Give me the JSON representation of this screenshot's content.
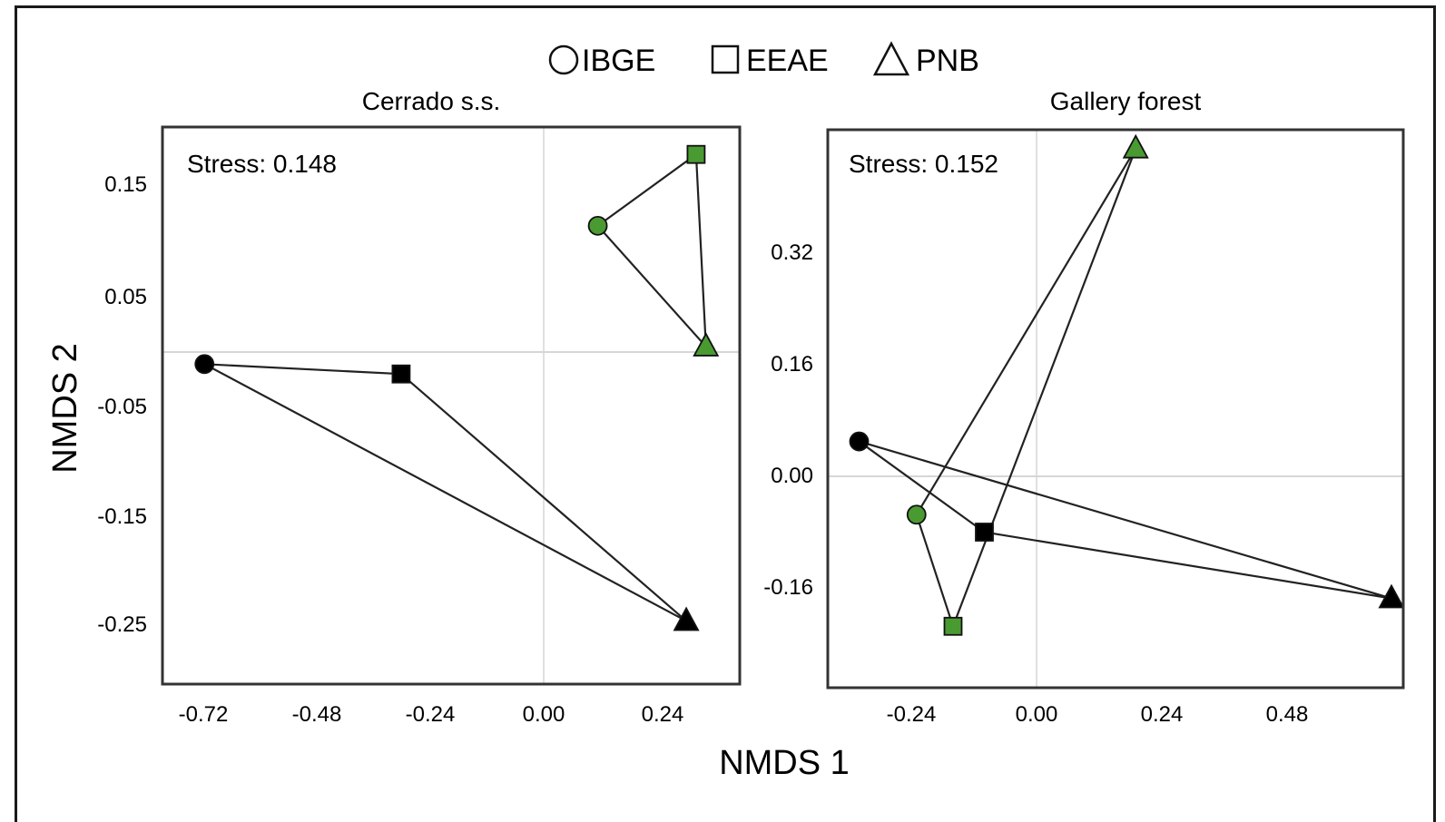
{
  "legend": {
    "items": [
      {
        "label": "IBGE",
        "shape": "circle"
      },
      {
        "label": "EEAE",
        "shape": "square"
      },
      {
        "label": "PNB",
        "shape": "triangle"
      }
    ]
  },
  "axes": {
    "xlabel": "NMDS 1",
    "ylabel": "NMDS 2"
  },
  "colors": {
    "green": "#4a9a32",
    "black": "#000000",
    "grid": "#d9d9d9",
    "frame": "#333333"
  },
  "chart_data": [
    {
      "type": "scatter",
      "title": "Cerrado s.s.",
      "annotation": "Stress: 0.148",
      "xlabel": "NMDS 1",
      "ylabel": "NMDS 2",
      "xticks": [
        "-0.72",
        "-0.48",
        "-0.24",
        "0.00",
        "0.24"
      ],
      "yticks": [
        "0.15",
        "0.05",
        "-0.05",
        "-0.15",
        "-0.25"
      ],
      "xlim": [
        -0.8,
        0.38
      ],
      "ylim": [
        -0.3,
        0.21
      ],
      "grid": "zero-lines",
      "series": [
        {
          "name": "group-black",
          "color": "black",
          "points": [
            {
              "site": "IBGE",
              "shape": "circle",
              "x": -0.69,
              "y": -0.011
            },
            {
              "site": "EEAE",
              "shape": "square",
              "x": -0.29,
              "y": -0.02
            },
            {
              "site": "PNB",
              "shape": "triangle",
              "x": 0.29,
              "y": -0.245
            }
          ]
        },
        {
          "name": "group-green",
          "color": "green",
          "points": [
            {
              "site": "IBGE",
              "shape": "circle",
              "x": 0.11,
              "y": 0.115
            },
            {
              "site": "EEAE",
              "shape": "square",
              "x": 0.31,
              "y": 0.18
            },
            {
              "site": "PNB",
              "shape": "triangle",
              "x": 0.33,
              "y": 0.005
            }
          ]
        }
      ]
    },
    {
      "type": "scatter",
      "title": "Gallery forest",
      "annotation": "Stress: 0.152",
      "xlabel": "NMDS 1",
      "ylabel": "NMDS 2",
      "xticks": [
        "-0.24",
        "0.00",
        "0.24",
        "0.48"
      ],
      "yticks": [
        "0.32",
        "0.16",
        "0.00",
        "-0.16"
      ],
      "xlim": [
        -0.4,
        0.7
      ],
      "ylim": [
        -0.3,
        0.5
      ],
      "grid": "zero-lines",
      "series": [
        {
          "name": "group-black",
          "color": "black",
          "points": [
            {
              "site": "IBGE",
              "shape": "circle",
              "x": -0.34,
              "y": 0.05
            },
            {
              "site": "EEAE",
              "shape": "square",
              "x": -0.1,
              "y": -0.08
            },
            {
              "site": "PNB",
              "shape": "triangle",
              "x": 0.68,
              "y": -0.175
            }
          ]
        },
        {
          "name": "group-green",
          "color": "green",
          "points": [
            {
              "site": "IBGE",
              "shape": "circle",
              "x": -0.23,
              "y": -0.055
            },
            {
              "site": "EEAE",
              "shape": "square",
              "x": -0.16,
              "y": -0.215
            },
            {
              "site": "PNB",
              "shape": "triangle",
              "x": 0.19,
              "y": 0.47
            }
          ]
        }
      ]
    }
  ]
}
